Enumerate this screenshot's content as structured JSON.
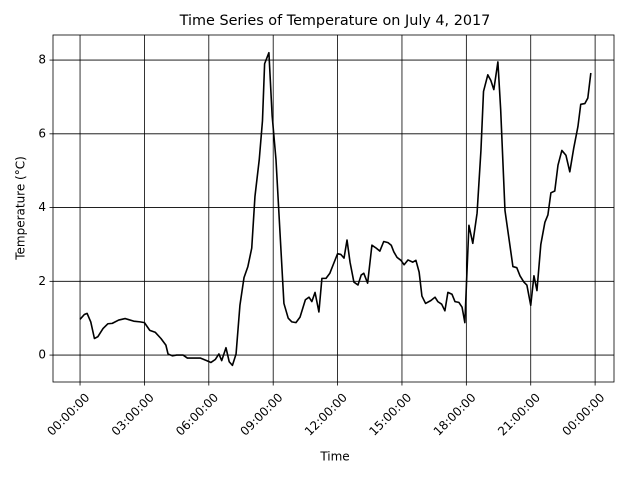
{
  "chart_data": {
    "type": "line",
    "title": "Time Series of Temperature on July 4, 2017",
    "x_label": "Time",
    "y_label": "Temperature (°C)",
    "grid": true,
    "x": [
      0,
      0.2,
      0.33,
      0.5,
      0.67,
      0.83,
      1.07,
      1.3,
      1.5,
      1.8,
      2.1,
      2.5,
      2.8,
      3.0,
      3.25,
      3.5,
      3.77,
      4.0,
      4.1,
      4.3,
      4.5,
      4.8,
      5.0,
      5.35,
      5.6,
      5.9,
      6.1,
      6.3,
      6.47,
      6.6,
      6.8,
      6.95,
      7.1,
      7.27,
      7.45,
      7.64,
      7.82,
      8.0,
      8.15,
      8.35,
      8.5,
      8.6,
      8.8,
      8.95,
      9.13,
      9.3,
      9.5,
      9.7,
      9.87,
      10.06,
      10.25,
      10.5,
      10.67,
      10.8,
      10.95,
      11.13,
      11.27,
      11.46,
      11.64,
      11.83,
      12.0,
      12.15,
      12.3,
      12.44,
      12.58,
      12.76,
      12.95,
      13.1,
      13.22,
      13.4,
      13.6,
      13.8,
      13.97,
      14.15,
      14.35,
      14.5,
      14.62,
      14.77,
      14.95,
      15.1,
      15.28,
      15.5,
      15.65,
      15.8,
      15.93,
      16.1,
      16.35,
      16.54,
      16.67,
      16.85,
      17.0,
      17.14,
      17.33,
      17.47,
      17.65,
      17.8,
      17.93,
      18.12,
      18.3,
      18.5,
      18.68,
      18.8,
      19.0,
      19.14,
      19.28,
      19.47,
      19.6,
      19.8,
      20.0,
      20.17,
      20.35,
      20.5,
      20.68,
      20.82,
      21.0,
      21.15,
      21.29,
      21.47,
      21.66,
      21.8,
      21.94,
      22.12,
      22.27,
      22.45,
      22.64,
      22.82,
      23.0,
      23.2,
      23.33,
      23.52,
      23.66,
      23.8
    ],
    "series": [
      {
        "color": "#000000",
        "values": [
          0.97,
          1.1,
          1.13,
          0.9,
          0.45,
          0.5,
          0.72,
          0.85,
          0.86,
          0.95,
          0.99,
          0.92,
          0.9,
          0.88,
          0.67,
          0.62,
          0.45,
          0.27,
          0.03,
          -0.02,
          0.0,
          0.0,
          -0.08,
          -0.08,
          -0.08,
          -0.15,
          -0.2,
          -0.12,
          0.03,
          -0.15,
          0.2,
          -0.18,
          -0.28,
          0.03,
          1.35,
          2.1,
          2.4,
          2.9,
          4.3,
          5.3,
          6.35,
          7.9,
          8.2,
          6.5,
          5.3,
          3.5,
          1.4,
          1.0,
          0.9,
          0.88,
          1.03,
          1.5,
          1.57,
          1.45,
          1.7,
          1.17,
          2.08,
          2.08,
          2.22,
          2.5,
          2.75,
          2.73,
          2.63,
          3.12,
          2.52,
          1.98,
          1.9,
          2.17,
          2.22,
          1.95,
          2.98,
          2.9,
          2.82,
          3.08,
          3.05,
          2.98,
          2.8,
          2.65,
          2.57,
          2.45,
          2.58,
          2.52,
          2.57,
          2.25,
          1.6,
          1.4,
          1.48,
          1.57,
          1.45,
          1.38,
          1.2,
          1.7,
          1.65,
          1.45,
          1.43,
          1.3,
          0.88,
          3.52,
          3.03,
          3.85,
          5.55,
          7.15,
          7.6,
          7.45,
          7.2,
          7.95,
          6.65,
          3.92,
          3.1,
          2.4,
          2.37,
          2.15,
          1.98,
          1.9,
          1.35,
          2.15,
          1.75,
          3.0,
          3.6,
          3.8,
          4.4,
          4.45,
          5.15,
          5.55,
          5.42,
          4.97,
          5.6,
          6.2,
          6.8,
          6.82,
          6.97,
          7.65
        ]
      }
    ],
    "xlim": [
      -1.26,
      24.88
    ],
    "xticks": [
      {
        "value": 0,
        "label": "00:00:00"
      },
      {
        "value": 3,
        "label": "03:00:00"
      },
      {
        "value": 6,
        "label": "06:00:00"
      },
      {
        "value": 9,
        "label": "09:00:00"
      },
      {
        "value": 12,
        "label": "12:00:00"
      },
      {
        "value": 15,
        "label": "15:00:00"
      },
      {
        "value": 18,
        "label": "18:00:00"
      },
      {
        "value": 21,
        "label": "21:00:00"
      },
      {
        "value": 24,
        "label": "00:00:00"
      }
    ],
    "ylim": [
      -0.73,
      8.68
    ],
    "yticks": [
      0,
      2,
      4,
      6,
      8
    ]
  }
}
